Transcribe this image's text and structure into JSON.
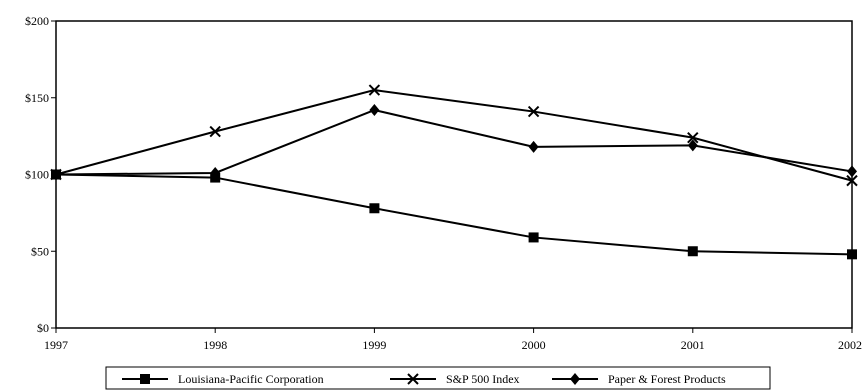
{
  "chart_data": {
    "type": "line",
    "title": "",
    "xlabel": "",
    "ylabel": "",
    "x": [
      "1997",
      "1998",
      "1999",
      "2000",
      "2001",
      "2002"
    ],
    "ylim": [
      0,
      200
    ],
    "y_ticks": [
      "$0",
      "$50",
      "$100",
      "$150",
      "$200"
    ],
    "y_tick_values": [
      0,
      50,
      100,
      150,
      200
    ],
    "grid": false,
    "legend_position": "bottom",
    "series": [
      {
        "name": "Louisiana-Pacific Corporation",
        "marker": "square",
        "values": [
          100,
          98,
          78,
          59,
          50,
          48
        ]
      },
      {
        "name": "S&P 500 Index",
        "marker": "x",
        "values": [
          100,
          128,
          155,
          141,
          124,
          96
        ]
      },
      {
        "name": "Paper & Forest Products",
        "marker": "diamond",
        "values": [
          100,
          101,
          142,
          118,
          119,
          102
        ]
      }
    ]
  }
}
